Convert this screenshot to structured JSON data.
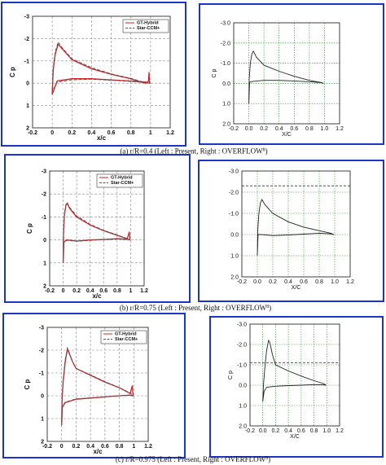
{
  "captions": [
    "(a)  r/R=0.4 (Left : Present,  Right : OVERFLOW",
    "(b)  r/R=0.75 (Left : Present,  Right : OVERFLOW",
    "(c)  r/R=0.975 (Left : Present,  Right : OVERFLOW"
  ],
  "caption_sup": "8",
  "caption_close": ")",
  "colors": {
    "frame": "#1d34c8",
    "grid": "#2f8f2f",
    "gt_hybrid": "#cc2222",
    "star_ccm": "#555555",
    "overflow": "#222222"
  },
  "chart_data": [
    {
      "type": "line",
      "panel": "a-left",
      "xlabel": "x/c",
      "ylabel": "C p",
      "xlim": [
        -0.2,
        1.2
      ],
      "ylim": [
        -3,
        2
      ],
      "y_inverted": true,
      "xticks": [
        "-0.2",
        "0",
        "0.2",
        "0.4",
        "0.6",
        "0.8",
        "1",
        "1.2"
      ],
      "yticks": [
        "-3",
        "-2",
        "-1",
        "0",
        "1",
        "2"
      ],
      "legend": [
        "GT-Hybrid",
        "Star-CCM+"
      ],
      "series": [
        {
          "name": "GT-Hybrid",
          "upper": [
            [
              0,
              0.5
            ],
            [
              0.01,
              -0.6
            ],
            [
              0.03,
              -1.3
            ],
            [
              0.06,
              -1.75
            ],
            [
              0.1,
              -1.55
            ],
            [
              0.2,
              -1.05
            ],
            [
              0.4,
              -0.65
            ],
            [
              0.6,
              -0.4
            ],
            [
              0.8,
              -0.2
            ],
            [
              0.9,
              -0.05
            ],
            [
              0.95,
              0.0
            ],
            [
              0.98,
              -0.1
            ],
            [
              0.985,
              -0.5
            ],
            [
              0.99,
              0.0
            ]
          ],
          "lower": [
            [
              0,
              0.5
            ],
            [
              0.02,
              0.25
            ],
            [
              0.05,
              -0.1
            ],
            [
              0.2,
              -0.2
            ],
            [
              0.4,
              -0.2
            ],
            [
              0.6,
              -0.15
            ],
            [
              0.8,
              -0.1
            ],
            [
              0.95,
              -0.05
            ],
            [
              0.99,
              0.0
            ]
          ]
        },
        {
          "name": "Star-CCM+",
          "upper": [
            [
              0,
              0.3
            ],
            [
              0.01,
              -0.7
            ],
            [
              0.03,
              -1.4
            ],
            [
              0.06,
              -1.85
            ],
            [
              0.1,
              -1.6
            ],
            [
              0.2,
              -1.1
            ],
            [
              0.4,
              -0.7
            ],
            [
              0.6,
              -0.42
            ],
            [
              0.8,
              -0.22
            ],
            [
              0.95,
              -0.02
            ],
            [
              0.99,
              0.0
            ]
          ],
          "lower": [
            [
              0,
              0.3
            ],
            [
              0.02,
              0.2
            ],
            [
              0.05,
              -0.05
            ],
            [
              0.2,
              -0.15
            ],
            [
              0.4,
              -0.18
            ],
            [
              0.6,
              -0.13
            ],
            [
              0.8,
              -0.08
            ],
            [
              0.95,
              -0.03
            ],
            [
              0.99,
              0.0
            ]
          ]
        }
      ]
    },
    {
      "type": "line",
      "panel": "a-right",
      "xlabel": "X/C",
      "ylabel": "C p",
      "xlim": [
        -0.2,
        1.2
      ],
      "ylim": [
        -3,
        2
      ],
      "y_inverted": true,
      "xticks": [
        "-0.2",
        "0.0",
        "0.2",
        "0.4",
        "0.6",
        "0.8",
        "1.0",
        "1.2"
      ],
      "yticks": [
        "-3.0",
        "-2.0",
        "-1.0",
        "0.0",
        "1.0",
        "2.0"
      ],
      "series": [
        {
          "name": "",
          "upper": [
            [
              0,
              1.0
            ],
            [
              0.005,
              -0.2
            ],
            [
              0.02,
              -1.0
            ],
            [
              0.04,
              -1.45
            ],
            [
              0.06,
              -1.6
            ],
            [
              0.1,
              -1.3
            ],
            [
              0.2,
              -0.9
            ],
            [
              0.4,
              -0.6
            ],
            [
              0.6,
              -0.35
            ],
            [
              0.8,
              -0.15
            ],
            [
              0.95,
              -0.05
            ],
            [
              0.99,
              0.0
            ]
          ],
          "lower": [
            [
              0,
              1.0
            ],
            [
              0.01,
              -0.05
            ],
            [
              0.05,
              -0.1
            ],
            [
              0.2,
              -0.15
            ],
            [
              0.4,
              -0.15
            ],
            [
              0.6,
              -0.12
            ],
            [
              0.8,
              -0.08
            ],
            [
              0.95,
              -0.04
            ],
            [
              0.99,
              0.0
            ]
          ]
        }
      ]
    },
    {
      "type": "line",
      "panel": "b-left",
      "xlabel": "x/c",
      "ylabel": "C p",
      "xlim": [
        -0.2,
        1.2
      ],
      "ylim": [
        -3,
        2
      ],
      "y_inverted": true,
      "xticks": [
        "-0.2",
        "0",
        "0.2",
        "0.4",
        "0.6",
        "0.8",
        "1",
        "1.2"
      ],
      "yticks": [
        "-3",
        "-2",
        "-1",
        "0",
        "1",
        "2"
      ],
      "legend": [
        "GT-Hybrid",
        "Star-CCM+"
      ],
      "series": [
        {
          "name": "GT-Hybrid",
          "upper": [
            [
              0,
              1.0
            ],
            [
              0.005,
              -0.3
            ],
            [
              0.02,
              -1.1
            ],
            [
              0.04,
              -1.5
            ],
            [
              0.06,
              -1.6
            ],
            [
              0.1,
              -1.35
            ],
            [
              0.2,
              -1.0
            ],
            [
              0.4,
              -0.65
            ],
            [
              0.6,
              -0.4
            ],
            [
              0.8,
              -0.2
            ],
            [
              0.95,
              -0.05
            ],
            [
              0.98,
              -0.35
            ],
            [
              0.99,
              0.0
            ]
          ],
          "lower": [
            [
              0,
              1.0
            ],
            [
              0.01,
              0.1
            ],
            [
              0.05,
              -0.0
            ],
            [
              0.2,
              0.05
            ],
            [
              0.4,
              0.0
            ],
            [
              0.6,
              -0.02
            ],
            [
              0.8,
              -0.05
            ],
            [
              0.95,
              -0.03
            ],
            [
              0.99,
              0.0
            ]
          ]
        },
        {
          "name": "Star-CCM+",
          "upper": [
            [
              0,
              0.9
            ],
            [
              0.005,
              -0.35
            ],
            [
              0.02,
              -1.15
            ],
            [
              0.04,
              -1.55
            ],
            [
              0.06,
              -1.62
            ],
            [
              0.1,
              -1.4
            ],
            [
              0.2,
              -1.05
            ],
            [
              0.4,
              -0.68
            ],
            [
              0.6,
              -0.42
            ],
            [
              0.8,
              -0.22
            ],
            [
              0.95,
              -0.06
            ],
            [
              0.99,
              0.0
            ]
          ],
          "lower": [
            [
              0,
              0.9
            ],
            [
              0.01,
              0.08
            ],
            [
              0.05,
              0.02
            ],
            [
              0.2,
              0.06
            ],
            [
              0.4,
              0.02
            ],
            [
              0.6,
              -0.01
            ],
            [
              0.8,
              -0.04
            ],
            [
              0.95,
              -0.02
            ],
            [
              0.99,
              0.0
            ]
          ]
        }
      ]
    },
    {
      "type": "line",
      "panel": "b-right",
      "xlabel": "X/C",
      "ylabel": "",
      "xlim": [
        -0.2,
        1.2
      ],
      "ylim": [
        -3,
        2
      ],
      "y_inverted": true,
      "xticks": [
        "-0.2",
        "0.0",
        "0.2",
        "0.4",
        "0.6",
        "0.8",
        "1.0",
        "1.2"
      ],
      "yticks": [
        "-3.0",
        "-2.0",
        "-1.0",
        "0.0",
        "1.0",
        "2.0"
      ],
      "hline": -2.3,
      "series": [
        {
          "name": "",
          "upper": [
            [
              0,
              1.0
            ],
            [
              0.005,
              -0.2
            ],
            [
              0.02,
              -1.0
            ],
            [
              0.04,
              -1.5
            ],
            [
              0.06,
              -1.65
            ],
            [
              0.1,
              -1.4
            ],
            [
              0.2,
              -1.0
            ],
            [
              0.4,
              -0.6
            ],
            [
              0.6,
              -0.35
            ],
            [
              0.8,
              -0.18
            ],
            [
              0.95,
              -0.06
            ],
            [
              0.99,
              0.0
            ]
          ],
          "lower": [
            [
              0,
              1.0
            ],
            [
              0.01,
              0.0
            ],
            [
              0.05,
              0.0
            ],
            [
              0.2,
              0.05
            ],
            [
              0.4,
              0.02
            ],
            [
              0.6,
              -0.02
            ],
            [
              0.8,
              -0.06
            ],
            [
              0.95,
              -0.03
            ],
            [
              0.99,
              0.0
            ]
          ]
        }
      ]
    },
    {
      "type": "line",
      "panel": "c-left",
      "xlabel": "x/c",
      "ylabel": "C p",
      "xlim": [
        -0.2,
        1.2
      ],
      "ylim": [
        -3,
        2
      ],
      "y_inverted": true,
      "xticks": [
        "-0.2",
        "0",
        "0.2",
        "0.4",
        "0.6",
        "0.8",
        "1",
        "1.2"
      ],
      "yticks": [
        "-3",
        "-2",
        "-1",
        "0",
        "1",
        "2"
      ],
      "legend": [
        "GT-Hybrid",
        "Star-CCM+"
      ],
      "series": [
        {
          "name": "GT-Hybrid",
          "upper": [
            [
              0,
              1.3
            ],
            [
              0.005,
              0.2
            ],
            [
              0.02,
              -0.6
            ],
            [
              0.05,
              -1.5
            ],
            [
              0.08,
              -2.05
            ],
            [
              0.1,
              -1.9
            ],
            [
              0.15,
              -1.5
            ],
            [
              0.2,
              -1.2
            ],
            [
              0.4,
              -0.9
            ],
            [
              0.6,
              -0.6
            ],
            [
              0.8,
              -0.35
            ],
            [
              0.95,
              -0.1
            ],
            [
              0.98,
              -0.45
            ],
            [
              0.99,
              0.0
            ]
          ],
          "lower": [
            [
              0,
              1.3
            ],
            [
              0.01,
              0.5
            ],
            [
              0.05,
              0.3
            ],
            [
              0.2,
              0.15
            ],
            [
              0.4,
              0.1
            ],
            [
              0.6,
              0.05
            ],
            [
              0.8,
              0.0
            ],
            [
              0.95,
              -0.03
            ],
            [
              0.99,
              0.0
            ]
          ]
        },
        {
          "name": "Star-CCM+",
          "upper": [
            [
              0,
              1.2
            ],
            [
              0.005,
              0.1
            ],
            [
              0.02,
              -0.7
            ],
            [
              0.05,
              -1.6
            ],
            [
              0.08,
              -2.1
            ],
            [
              0.1,
              -1.95
            ],
            [
              0.15,
              -1.5
            ],
            [
              0.2,
              -1.2
            ],
            [
              0.4,
              -0.92
            ],
            [
              0.6,
              -0.62
            ],
            [
              0.8,
              -0.36
            ],
            [
              0.95,
              -0.12
            ],
            [
              0.99,
              0.0
            ]
          ],
          "lower": [
            [
              0,
              1.2
            ],
            [
              0.01,
              0.45
            ],
            [
              0.05,
              0.28
            ],
            [
              0.2,
              0.14
            ],
            [
              0.4,
              0.09
            ],
            [
              0.6,
              0.04
            ],
            [
              0.8,
              0.0
            ],
            [
              0.95,
              -0.02
            ],
            [
              0.99,
              0.0
            ]
          ]
        }
      ]
    },
    {
      "type": "line",
      "panel": "c-right",
      "xlabel": "X/C",
      "ylabel": "C p",
      "xlim": [
        -0.2,
        1.2
      ],
      "ylim": [
        -3,
        2
      ],
      "y_inverted": true,
      "xticks": [
        "-0.2",
        "0.0",
        "0.2",
        "0.4",
        "0.6",
        "0.8",
        "1.0",
        "1.2"
      ],
      "yticks": [
        "-3.0",
        "-2.0",
        "-1.0",
        "0.0",
        "1.0",
        "2.0"
      ],
      "hline": -1.1,
      "series": [
        {
          "name": "",
          "upper": [
            [
              0,
              0.8
            ],
            [
              0.01,
              0.0
            ],
            [
              0.03,
              -0.8
            ],
            [
              0.06,
              -1.7
            ],
            [
              0.09,
              -2.2
            ],
            [
              0.11,
              -2.1
            ],
            [
              0.15,
              -1.5
            ],
            [
              0.2,
              -1.0
            ],
            [
              0.4,
              -0.7
            ],
            [
              0.6,
              -0.45
            ],
            [
              0.8,
              -0.22
            ],
            [
              0.95,
              -0.08
            ],
            [
              0.99,
              0.0
            ]
          ],
          "lower": [
            [
              0,
              0.8
            ],
            [
              0.02,
              0.3
            ],
            [
              0.06,
              0.1
            ],
            [
              0.2,
              0.05
            ],
            [
              0.4,
              0.02
            ],
            [
              0.6,
              0.0
            ],
            [
              0.8,
              -0.03
            ],
            [
              0.95,
              -0.02
            ],
            [
              0.99,
              0.0
            ]
          ]
        }
      ]
    }
  ]
}
